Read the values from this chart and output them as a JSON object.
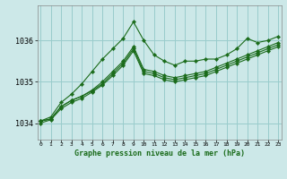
{
  "title": "Graphe pression niveau de la mer (hPa)",
  "background_color": "#cce8e8",
  "grid_color": "#99cccc",
  "line_color": "#1a6b1a",
  "x_ticks": [
    0,
    1,
    2,
    3,
    4,
    5,
    6,
    7,
    8,
    9,
    10,
    11,
    12,
    13,
    14,
    15,
    16,
    17,
    18,
    19,
    20,
    21,
    22,
    23
  ],
  "y_ticks": [
    1034,
    1035,
    1036
  ],
  "ylim": [
    1033.6,
    1036.85
  ],
  "xlim": [
    -0.3,
    23.3
  ],
  "series": [
    [
      1034.05,
      1034.1,
      1034.4,
      1034.55,
      1034.65,
      1034.8,
      1035.0,
      1035.25,
      1035.5,
      1035.85,
      1035.3,
      1035.25,
      1035.15,
      1035.1,
      1035.15,
      1035.2,
      1035.25,
      1035.35,
      1035.45,
      1035.55,
      1035.65,
      1035.75,
      1035.85,
      1035.95
    ],
    [
      1034.05,
      1034.1,
      1034.4,
      1034.55,
      1034.65,
      1034.78,
      1034.95,
      1035.2,
      1035.45,
      1035.8,
      1035.25,
      1035.2,
      1035.1,
      1035.05,
      1035.1,
      1035.15,
      1035.2,
      1035.3,
      1035.4,
      1035.5,
      1035.6,
      1035.7,
      1035.8,
      1035.9
    ],
    [
      1034.0,
      1034.08,
      1034.35,
      1034.5,
      1034.6,
      1034.75,
      1034.92,
      1035.15,
      1035.4,
      1035.75,
      1035.2,
      1035.15,
      1035.05,
      1035.0,
      1035.05,
      1035.1,
      1035.15,
      1035.25,
      1035.35,
      1035.45,
      1035.55,
      1035.65,
      1035.75,
      1035.85
    ],
    [
      1034.05,
      1034.15,
      1034.5,
      1034.7,
      1034.95,
      1035.25,
      1035.55,
      1035.8,
      1036.05,
      1036.45,
      1036.0,
      1035.65,
      1035.5,
      1035.4,
      1035.5,
      1035.5,
      1035.55,
      1035.55,
      1035.65,
      1035.8,
      1036.05,
      1035.95,
      1036.0,
      1036.1
    ]
  ]
}
